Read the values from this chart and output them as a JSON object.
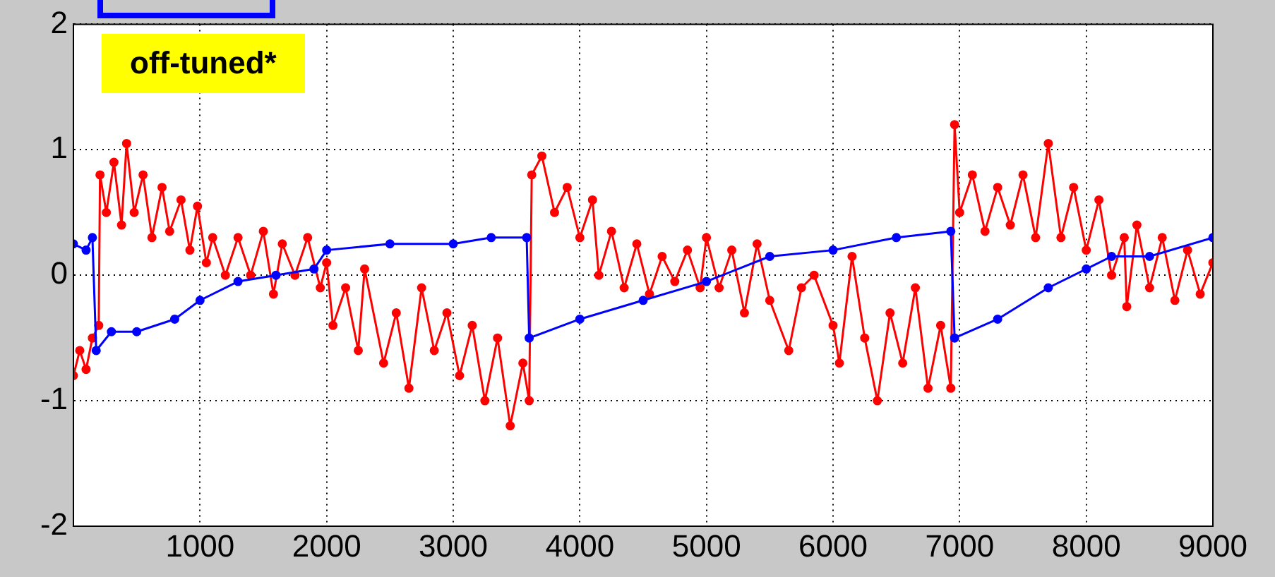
{
  "chart_data": {
    "type": "line",
    "annotations": [
      "off-tuned*"
    ],
    "xlim": [
      0,
      9000
    ],
    "xticks": [
      1000,
      2000,
      3000,
      4000,
      5000,
      6000,
      7000,
      8000,
      9000
    ],
    "ylim": [
      -2,
      2
    ],
    "yticks": [
      -2,
      -1,
      0,
      1,
      2
    ],
    "grid": true,
    "legend": false,
    "marker": "circle",
    "line_style": "solid",
    "series": [
      {
        "color": "#0000ff",
        "x": [
          0,
          100,
          150,
          180,
          300,
          500,
          800,
          1000,
          1300,
          1600,
          1900,
          2000,
          2500,
          3000,
          3300,
          3580,
          3600,
          4000,
          4500,
          5000,
          5500,
          6000,
          6500,
          6930,
          6960,
          7300,
          7700,
          8000,
          8200,
          8500,
          9000
        ],
        "values": [
          0.25,
          0.2,
          0.3,
          -0.6,
          -0.45,
          -0.45,
          -0.35,
          -0.2,
          -0.05,
          0.0,
          0.05,
          0.2,
          0.25,
          0.25,
          0.3,
          0.3,
          -0.5,
          -0.35,
          -0.2,
          -0.05,
          0.15,
          0.2,
          0.3,
          0.35,
          -0.5,
          -0.35,
          -0.1,
          0.05,
          0.15,
          0.15,
          0.3
        ]
      },
      {
        "color": "#ff0000",
        "x": [
          0,
          50,
          100,
          150,
          200,
          210,
          260,
          320,
          380,
          420,
          480,
          550,
          620,
          700,
          760,
          850,
          920,
          980,
          1050,
          1100,
          1200,
          1300,
          1400,
          1500,
          1580,
          1650,
          1750,
          1850,
          1950,
          2000,
          2050,
          2150,
          2250,
          2300,
          2450,
          2550,
          2650,
          2750,
          2850,
          2950,
          3050,
          3150,
          3250,
          3350,
          3450,
          3550,
          3600,
          3620,
          3700,
          3800,
          3900,
          4000,
          4100,
          4150,
          4250,
          4350,
          4450,
          4550,
          4650,
          4750,
          4850,
          4950,
          5000,
          5100,
          5200,
          5300,
          5400,
          5500,
          5650,
          5750,
          5850,
          6000,
          6050,
          6150,
          6250,
          6350,
          6450,
          6550,
          6650,
          6750,
          6850,
          6930,
          6960,
          7000,
          7100,
          7200,
          7300,
          7400,
          7500,
          7600,
          7700,
          7800,
          7900,
          8000,
          8100,
          8200,
          8300,
          8320,
          8400,
          8500,
          8600,
          8700,
          8800,
          8900,
          9000
        ],
        "values": [
          -0.8,
          -0.6,
          -0.75,
          -0.5,
          -0.4,
          0.8,
          0.5,
          0.9,
          0.4,
          1.05,
          0.5,
          0.8,
          0.3,
          0.7,
          0.35,
          0.6,
          0.2,
          0.55,
          0.1,
          0.3,
          0.0,
          0.3,
          0.0,
          0.35,
          -0.15,
          0.25,
          0.0,
          0.3,
          -0.1,
          0.1,
          -0.4,
          -0.1,
          -0.6,
          0.05,
          -0.7,
          -0.3,
          -0.9,
          -0.1,
          -0.6,
          -0.3,
          -0.8,
          -0.4,
          -1.0,
          -0.5,
          -1.2,
          -0.7,
          -1.0,
          0.8,
          0.95,
          0.5,
          0.7,
          0.3,
          0.6,
          0.0,
          0.35,
          -0.1,
          0.25,
          -0.15,
          0.15,
          -0.05,
          0.2,
          -0.1,
          0.3,
          -0.1,
          0.2,
          -0.3,
          0.25,
          -0.2,
          -0.6,
          -0.1,
          0.0,
          -0.4,
          -0.7,
          0.15,
          -0.5,
          -1.0,
          -0.3,
          -0.7,
          -0.1,
          -0.9,
          -0.4,
          -0.9,
          1.2,
          0.5,
          0.8,
          0.35,
          0.7,
          0.4,
          0.8,
          0.3,
          1.05,
          0.3,
          0.7,
          0.2,
          0.6,
          0.0,
          0.3,
          -0.25,
          0.4,
          -0.1,
          0.3,
          -0.2,
          0.2,
          -0.15,
          0.1
        ]
      }
    ]
  }
}
